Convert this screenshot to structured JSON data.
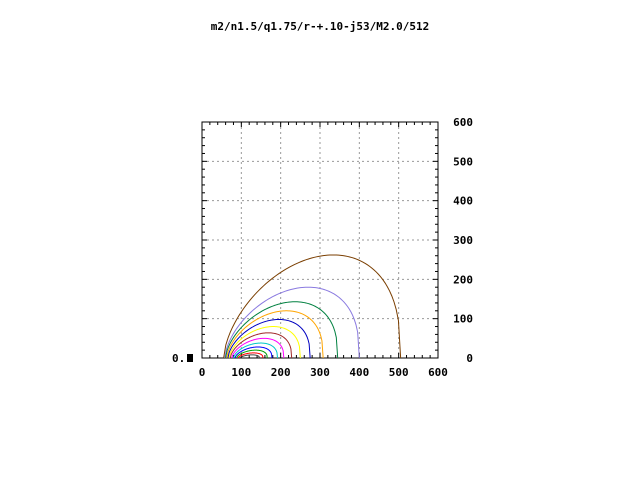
{
  "chart_data": {
    "type": "line",
    "title": "m2/n1.5/q1.75/r-+.10-j53/M2.0/512",
    "side_label": "0.",
    "xlim": [
      0,
      600
    ],
    "ylim": [
      0,
      600
    ],
    "x_ticks": [
      "0",
      "100",
      "200",
      "300",
      "400",
      "500",
      "600"
    ],
    "y_ticks": [
      "0",
      "100",
      "200",
      "300",
      "400",
      "500",
      "600"
    ],
    "grid": true,
    "series": [
      {
        "x0": 55,
        "x1": 505,
        "peak": 262,
        "color": "#7a3e00"
      },
      {
        "x0": 58,
        "x1": 400,
        "peak": 180,
        "color": "#8a7ae0"
      },
      {
        "x0": 60,
        "x1": 345,
        "peak": 143,
        "color": "#008040"
      },
      {
        "x0": 63,
        "x1": 308,
        "peak": 120,
        "color": "#ffa500"
      },
      {
        "x0": 66,
        "x1": 275,
        "peak": 98,
        "color": "#0000c0"
      },
      {
        "x0": 69,
        "x1": 250,
        "peak": 80,
        "color": "#ffff00"
      },
      {
        "x0": 72,
        "x1": 228,
        "peak": 64,
        "color": "#a02828"
      },
      {
        "x0": 76,
        "x1": 208,
        "peak": 50,
        "color": "#ff00ff"
      },
      {
        "x0": 80,
        "x1": 192,
        "peak": 38,
        "color": "#00c8c8"
      },
      {
        "x0": 84,
        "x1": 178,
        "peak": 28,
        "color": "#0000ff"
      },
      {
        "x0": 88,
        "x1": 166,
        "peak": 20,
        "color": "#00a000"
      },
      {
        "x0": 92,
        "x1": 155,
        "peak": 13,
        "color": "#ff0000"
      },
      {
        "x0": 97,
        "x1": 146,
        "peak": 8,
        "color": "#404040"
      }
    ]
  }
}
